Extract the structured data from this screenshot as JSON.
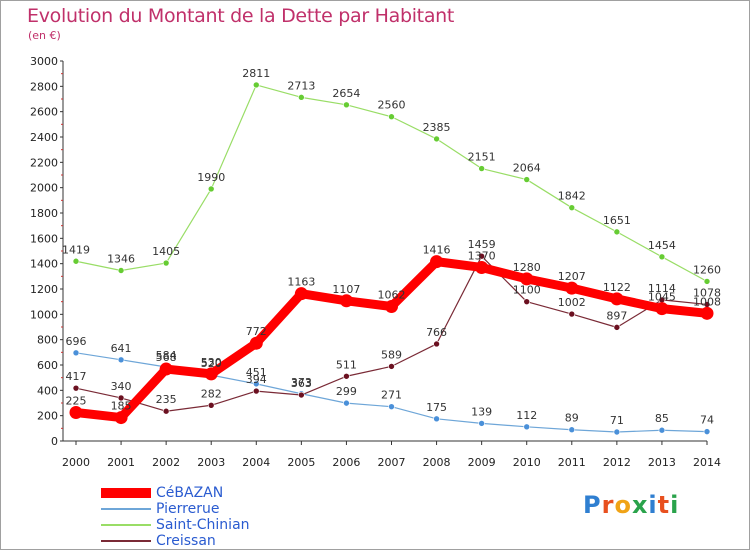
{
  "header": {
    "title": "Evolution du Montant de la Dette par Habitant",
    "subtitle": "(en €)"
  },
  "logo": {
    "text": "Proxiti",
    "colors": [
      "#2f7fd1",
      "#e8501f",
      "#f0a316",
      "#2aa34b",
      "#2f7fd1",
      "#e8501f",
      "#2aa34b"
    ]
  },
  "chart_data": {
    "type": "line",
    "x": [
      "2000",
      "2001",
      "2002",
      "2003",
      "2004",
      "2005",
      "2006",
      "2007",
      "2008",
      "2009",
      "2010",
      "2011",
      "2012",
      "2013",
      "2014"
    ],
    "ylim": [
      0,
      3000
    ],
    "yticks": [
      0,
      200,
      400,
      600,
      800,
      1000,
      1200,
      1400,
      1600,
      1800,
      2000,
      2200,
      2400,
      2600,
      2800,
      3000
    ],
    "grid": false,
    "legend_position": "bottom-left",
    "series": [
      {
        "name": "Saint-Chinian",
        "color": "#99dd66",
        "marker_color": "#66cc33",
        "values": [
          1419,
          1346,
          1405,
          1990,
          2811,
          2713,
          2654,
          2560,
          2385,
          2151,
          2064,
          1842,
          1651,
          1454,
          1260
        ]
      },
      {
        "name": "Pierrerue",
        "color": "#6ea6d8",
        "marker_color": "#4a90d9",
        "values": [
          696,
          641,
          584,
          520,
          451,
          373,
          299,
          271,
          175,
          139,
          112,
          89,
          71,
          85,
          74
        ]
      },
      {
        "name": "Creissan",
        "color": "#7a2a36",
        "marker_color": "#6b1020",
        "values": [
          417,
          340,
          235,
          282,
          394,
          363,
          511,
          589,
          766,
          1459,
          1100,
          1002,
          897,
          1114,
          1078
        ]
      },
      {
        "name": "CéBAZAN",
        "color": "#ff0000",
        "marker_color": "#ff0000",
        "values": [
          225,
          185,
          568,
          530,
          772,
          1163,
          1107,
          1062,
          1416,
          1370,
          1280,
          1207,
          1122,
          1045,
          1008
        ]
      }
    ],
    "legend": [
      "CéBAZAN",
      "Pierrerue",
      "Saint-Chinian",
      "Creissan"
    ]
  }
}
